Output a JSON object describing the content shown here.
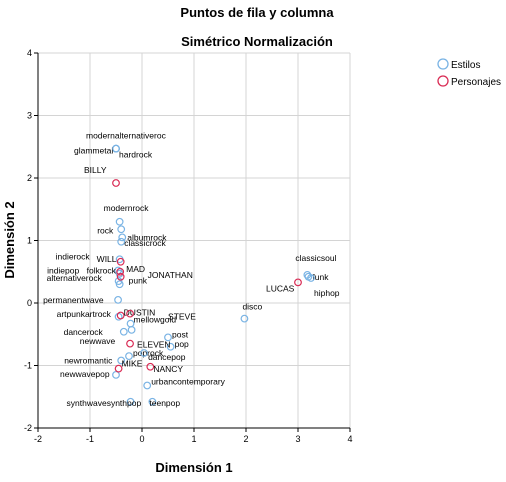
{
  "chart_data": {
    "type": "scatter",
    "title": "Puntos de fila y columna",
    "subtitle": "Simétrico Normalización",
    "xlabel": "Dimensión 1",
    "ylabel": "Dimensión 2",
    "xlim": [
      -2,
      4
    ],
    "ylim": [
      -2,
      4
    ],
    "xticks": [
      "-2",
      "-1",
      "0",
      "1",
      "2",
      "3",
      "4"
    ],
    "yticks": [
      "-2",
      "-1",
      "0",
      "1",
      "2",
      "3",
      "4"
    ],
    "grid": true,
    "legend": "right",
    "series": [
      {
        "name": "Estilos",
        "color": "#79b3e4",
        "points": [
          {
            "label": "modernalternativeroc",
            "x": -0.5,
            "y": 2.47
          },
          {
            "label": "glammetal",
            "x": -0.5,
            "y": 2.47
          },
          {
            "label": "hardrock",
            "x": -0.5,
            "y": 2.47
          },
          {
            "label": "modernrock",
            "x": -0.43,
            "y": 1.3
          },
          {
            "label": "rock",
            "x": -0.4,
            "y": 1.18
          },
          {
            "label": "albumrock",
            "x": -0.38,
            "y": 1.05
          },
          {
            "label": "classicrock",
            "x": -0.4,
            "y": 0.98
          },
          {
            "label": "indierock",
            "x": -0.43,
            "y": 0.7
          },
          {
            "label": "indiepop",
            "x": -0.46,
            "y": 0.52
          },
          {
            "label": "folkrock",
            "x": -0.43,
            "y": 0.47
          },
          {
            "label": "alternativerock",
            "x": -0.45,
            "y": 0.35
          },
          {
            "label": "punk",
            "x": -0.43,
            "y": 0.3
          },
          {
            "label": "permanentwave",
            "x": -0.46,
            "y": 0.05
          },
          {
            "label": "artpunkartrock",
            "x": -0.45,
            "y": -0.22
          },
          {
            "label": "mellowgold",
            "x": -0.22,
            "y": -0.33
          },
          {
            "label": "dancerock",
            "x": -0.2,
            "y": -0.43
          },
          {
            "label": "newwave",
            "x": -0.35,
            "y": -0.46
          },
          {
            "label": "post",
            "x": 0.5,
            "y": -0.55
          },
          {
            "label": "pop",
            "x": 0.55,
            "y": -0.7
          },
          {
            "label": "poprock",
            "x": -0.25,
            "y": -0.85
          },
          {
            "label": "dancepop",
            "x": 0.04,
            "y": -0.8
          },
          {
            "label": "newromantic",
            "x": -0.4,
            "y": -0.92
          },
          {
            "label": "newwavepop",
            "x": -0.5,
            "y": -1.15
          },
          {
            "label": "urbancontemporary",
            "x": 0.1,
            "y": -1.32
          },
          {
            "label": "synthwavesynthpop",
            "x": -0.22,
            "y": -1.58
          },
          {
            "label": "teenpop",
            "x": 0.2,
            "y": -1.58
          },
          {
            "label": "disco",
            "x": 1.97,
            "y": -0.25
          },
          {
            "label": "classicsoul",
            "x": 3.18,
            "y": 0.45
          },
          {
            "label": "funk",
            "x": 3.2,
            "y": 0.42
          },
          {
            "label": "hiphop",
            "x": 3.25,
            "y": 0.4
          }
        ]
      },
      {
        "name": "Personajes",
        "color": "#d92b54",
        "points": [
          {
            "label": "BILLY",
            "x": -0.5,
            "y": 1.92
          },
          {
            "label": "WILL",
            "x": -0.41,
            "y": 0.66
          },
          {
            "label": "MAD",
            "x": -0.42,
            "y": 0.5
          },
          {
            "label": "JONATHAN",
            "x": -0.41,
            "y": 0.42
          },
          {
            "label": "DUSTIN",
            "x": -0.41,
            "y": -0.2
          },
          {
            "label": "STEVE",
            "x": -0.23,
            "y": -0.17
          },
          {
            "label": "ELEVEN",
            "x": -0.23,
            "y": -0.65
          },
          {
            "label": "NANCY",
            "x": 0.16,
            "y": -1.02
          },
          {
            "label": "MIKE",
            "x": -0.45,
            "y": -1.05
          },
          {
            "label": "LUCAS",
            "x": 3.0,
            "y": 0.33
          }
        ]
      }
    ]
  }
}
